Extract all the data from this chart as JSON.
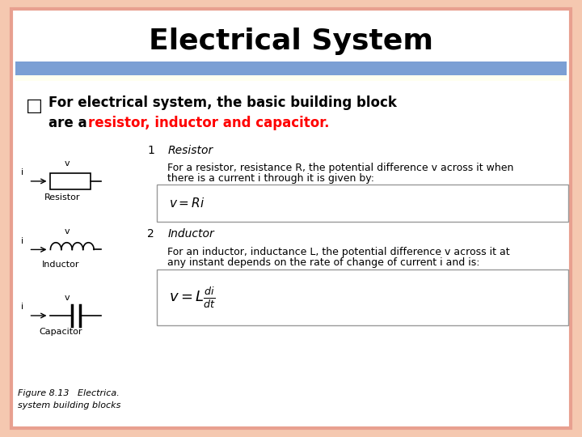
{
  "title": "Electrical System",
  "title_fontsize": 26,
  "bg_color": "#F5C8B0",
  "slide_bg": "#FFFFFF",
  "header_bar_color": "#7B9FD4",
  "header_bar2_color": "#FFFFF0",
  "border_color": "#E8A090",
  "box_edge_color": "#999999",
  "box_fill_color": "#FFFFFF",
  "text_fontsize": 11,
  "body_fontsize": 9,
  "fig_caption_line1": "Figure 8.13   Electrica.",
  "fig_caption_line2": "system building blocks"
}
